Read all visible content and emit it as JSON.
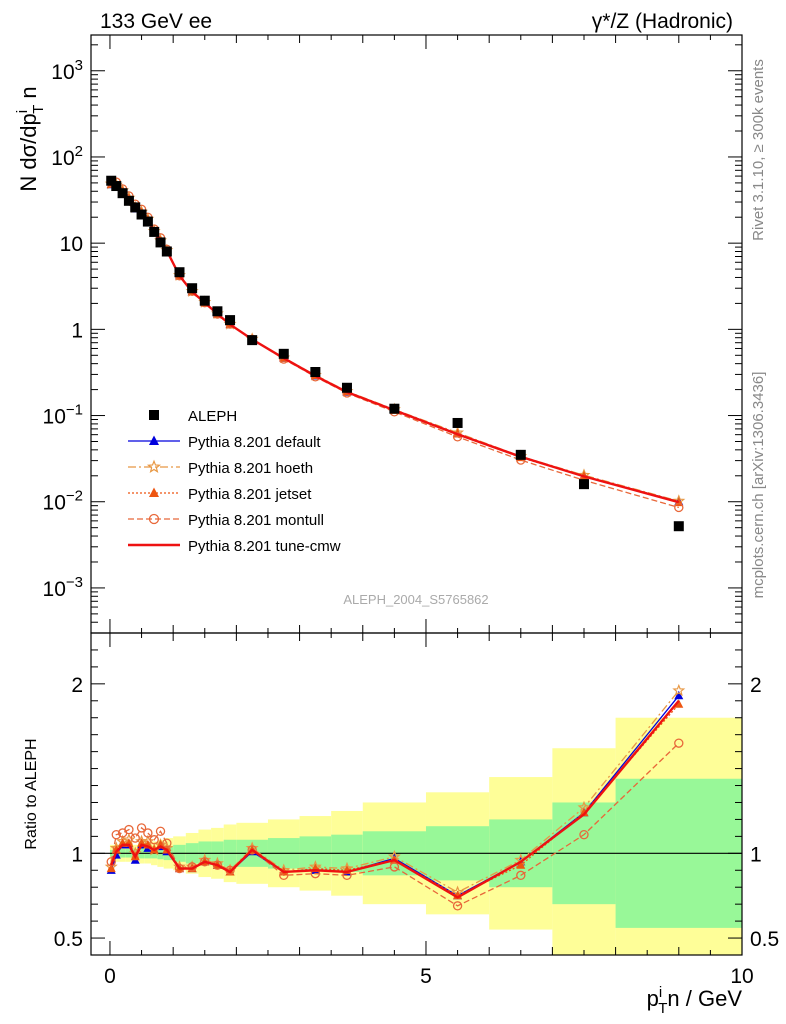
{
  "header": {
    "left": "133 GeV ee",
    "right": "γ*/Z (Hadronic)"
  },
  "side": {
    "rivet": "Rivet 3.1.10, ≥ 300k events",
    "mcplots": "mcplots.cern.ch [arXiv:1306.3436]"
  },
  "chart_data": [
    {
      "type": "scatter",
      "ylabel": "N dσ/dp_T^i n",
      "yscale": "log",
      "ylim": [
        0.0003,
        2600
      ],
      "xlim": [
        -0.3,
        10
      ],
      "yticks": [
        "10^-3",
        "10^-2",
        "10^-1",
        "1",
        "10",
        "10^2",
        "10^3"
      ],
      "analysis_label": "ALEPH_2004_S5765862",
      "x": [
        0.02,
        0.1,
        0.2,
        0.3,
        0.4,
        0.5,
        0.6,
        0.7,
        0.8,
        0.9,
        1.1,
        1.3,
        1.5,
        1.7,
        1.9,
        2.25,
        2.75,
        3.25,
        3.75,
        4.5,
        5.5,
        6.5,
        7.5,
        9.0
      ],
      "series": [
        {
          "name": "ALEPH",
          "style": "data",
          "color": "#000000",
          "values": [
            53,
            46,
            38,
            31,
            26,
            21.5,
            17.8,
            13.5,
            10.2,
            8.0,
            4.6,
            3.0,
            2.15,
            1.62,
            1.28,
            0.75,
            0.52,
            0.32,
            0.21,
            0.12,
            0.082,
            0.035,
            0.016,
            0.0052
          ]
        },
        {
          "name": "Pythia 8.201 default",
          "style": "default",
          "color": "#0000dd",
          "ratio": [
            0.9,
            0.99,
            1.05,
            1.05,
            0.96,
            1.05,
            1.03,
            1.02,
            1.04,
            1.01,
            0.91,
            0.91,
            0.95,
            0.93,
            0.89,
            1.01,
            0.89,
            0.9,
            0.89,
            0.97,
            0.75,
            0.95,
            1.24,
            1.93
          ]
        },
        {
          "name": "Pythia 8.201 hoeth",
          "style": "hoeth",
          "color": "#e89844",
          "ratio": [
            0.92,
            1.03,
            1.07,
            1.08,
            1.0,
            1.07,
            1.07,
            1.02,
            1.05,
            1.03,
            0.92,
            0.92,
            0.96,
            0.94,
            0.9,
            1.03,
            0.9,
            0.92,
            0.91,
            0.98,
            0.77,
            0.96,
            1.27,
            1.96
          ]
        },
        {
          "name": "Pythia 8.201 jetset",
          "style": "jetset",
          "color": "#ee5511",
          "ratio": [
            0.91,
            1.02,
            1.06,
            1.06,
            0.98,
            1.06,
            1.05,
            1.02,
            1.05,
            1.02,
            0.91,
            0.91,
            0.95,
            0.93,
            0.89,
            1.02,
            0.89,
            0.91,
            0.9,
            0.96,
            0.75,
            0.93,
            1.24,
            1.88
          ]
        },
        {
          "name": "Pythia 8.201 montull",
          "style": "montull",
          "color": "#e8683a",
          "ratio": [
            0.95,
            1.11,
            1.12,
            1.14,
            1.09,
            1.15,
            1.12,
            1.08,
            1.13,
            1.06,
            0.91,
            0.92,
            0.95,
            0.93,
            0.9,
            1.02,
            0.87,
            0.88,
            0.87,
            0.92,
            0.69,
            0.87,
            1.11,
            1.65
          ]
        },
        {
          "name": "Pythia 8.201 tune-cmw",
          "style": "cmw",
          "color": "#ee1111",
          "ratio": [
            0.93,
            1.01,
            1.05,
            1.05,
            0.98,
            1.05,
            1.04,
            1.02,
            1.04,
            1.02,
            0.91,
            0.91,
            0.95,
            0.93,
            0.89,
            1.02,
            0.89,
            0.9,
            0.89,
            0.96,
            0.74,
            0.95,
            1.23,
            1.9
          ]
        }
      ]
    },
    {
      "type": "line",
      "ylabel": "Ratio to ALEPH",
      "xlabel": "p_T^i n / GeV",
      "ylim": [
        0.4,
        2.3
      ],
      "xlim": [
        -0.3,
        10
      ],
      "xticks": [
        0,
        5,
        10
      ],
      "yticks": [
        0.5,
        1,
        2
      ],
      "bands": {
        "edges": [
          0,
          0.05,
          0.15,
          0.25,
          0.35,
          0.45,
          0.55,
          0.65,
          0.75,
          0.85,
          1.0,
          1.2,
          1.4,
          1.6,
          1.8,
          2.0,
          2.5,
          3.0,
          3.5,
          4.0,
          5.0,
          6.0,
          7.0,
          8.0,
          10.0
        ],
        "inner_color": "#98f898",
        "outer_color": "#fefe98",
        "inner": [
          0.02,
          0.02,
          0.025,
          0.025,
          0.025,
          0.03,
          0.03,
          0.03,
          0.035,
          0.04,
          0.05,
          0.06,
          0.07,
          0.07,
          0.08,
          0.08,
          0.09,
          0.1,
          0.11,
          0.13,
          0.16,
          0.2,
          0.3,
          0.44
        ],
        "outer": [
          0.05,
          0.05,
          0.05,
          0.05,
          0.05,
          0.06,
          0.06,
          0.07,
          0.08,
          0.09,
          0.1,
          0.12,
          0.14,
          0.15,
          0.17,
          0.18,
          0.2,
          0.22,
          0.25,
          0.3,
          0.36,
          0.45,
          0.62,
          0.8
        ]
      }
    }
  ]
}
